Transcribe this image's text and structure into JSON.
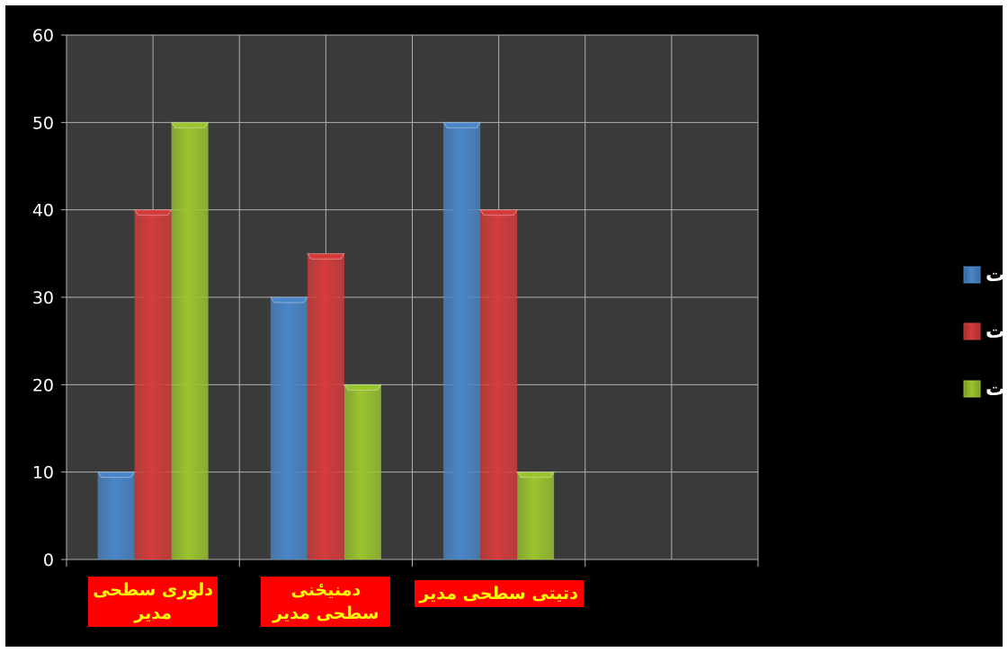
{
  "chart_data": {
    "type": "bar",
    "categories": [
      "دلوری سطحی مدیر",
      "دمنیځنی سطحی مدیر",
      "دتیتی سطحی مدیر"
    ],
    "series": [
      {
        "name": "تخنیکی مهارت",
        "values": [
          10,
          30,
          50
        ],
        "color": "#4a86c8"
      },
      {
        "name": "انسانی مهارت",
        "values": [
          40,
          35,
          40
        ],
        "color": "#d43c3c"
      },
      {
        "name": "ادراکی مهارت",
        "values": [
          50,
          20,
          10
        ],
        "color": "#9bc52f"
      }
    ],
    "ylim": [
      0,
      60
    ],
    "yticks": [
      "0",
      "10",
      "20",
      "30",
      "40",
      "50",
      "60"
    ],
    "grid": true,
    "legend_position": "right",
    "plot_background": "#3a3a3a",
    "background": "#000000",
    "label_background": "#ff0000",
    "label_color": "#ffff00"
  }
}
